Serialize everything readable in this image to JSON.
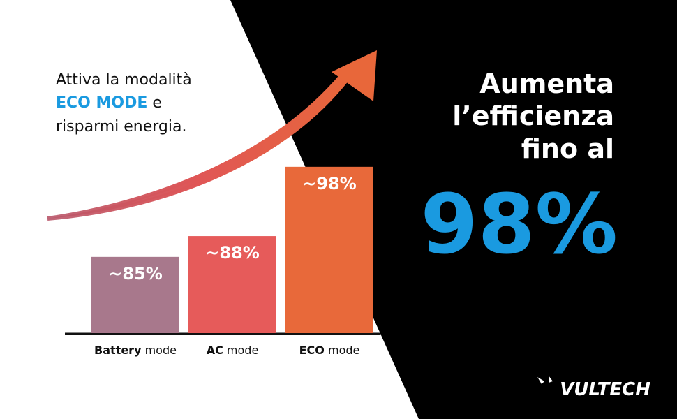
{
  "intro": {
    "line1": "Attiva la modalità",
    "highlight": "ECO MODE",
    "line2_rest": "e",
    "line3": "risparmi energia."
  },
  "chart_data": {
    "type": "bar",
    "categories": [
      "Battery mode",
      "AC mode",
      "ECO mode"
    ],
    "values": [
      85,
      88,
      98
    ],
    "value_labels": [
      "~85%",
      "~88%",
      "~98%"
    ],
    "colors": [
      "#a8788c",
      "#e65b5a",
      "#e8693a"
    ],
    "ylim": [
      74,
      100
    ]
  },
  "headline": {
    "lines": [
      "Aumenta",
      "l’efficienza",
      "fino al"
    ],
    "big": "98%"
  },
  "brand": "VULTECH"
}
